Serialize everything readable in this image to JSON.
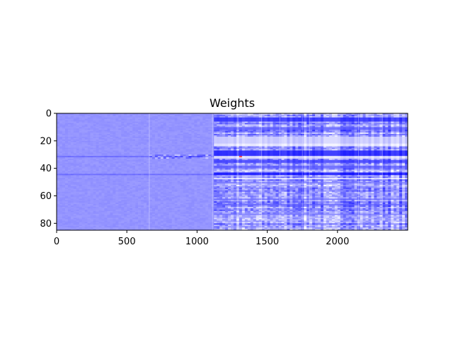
{
  "chart_data": {
    "type": "heatmap",
    "title": "Weights",
    "xlabel": "",
    "ylabel": "",
    "x_range": [
      0,
      2500
    ],
    "y_range": [
      0,
      85
    ],
    "y_inverted": true,
    "x_ticks": [
      0,
      500,
      1000,
      1500,
      2000
    ],
    "y_ticks": [
      0,
      20,
      40,
      60,
      80
    ],
    "colormap": "bwr",
    "color_low": "#0000ff",
    "color_mid": "#ffffff",
    "color_high": "#ff0000",
    "base_value": -0.42,
    "regions": [
      {
        "x_from": 0,
        "x_to": 1110,
        "description": "low variation, uniform blue"
      },
      {
        "x_from": 1110,
        "x_to": 2500,
        "description": "high variation, strong row bands"
      }
    ],
    "column_boundaries": [
      660,
      1110,
      1290,
      1460,
      1590,
      1750,
      1800,
      2150,
      2320
    ],
    "row_bands": [
      {
        "row_from": 3,
        "row_to": 6,
        "value": -0.75
      },
      {
        "row_from": 10,
        "row_to": 12,
        "value": -0.6
      },
      {
        "row_from": 17,
        "row_to": 22,
        "value": -0.2
      },
      {
        "row_from": 22,
        "row_to": 24,
        "value": -0.1
      },
      {
        "row_from": 27,
        "row_to": 31,
        "value": -0.8
      },
      {
        "row_from": 31,
        "row_to": 33,
        "value": -0.15
      },
      {
        "row_from": 34,
        "row_to": 36,
        "value": -0.7
      },
      {
        "row_from": 38,
        "row_to": 40,
        "value": -0.6
      },
      {
        "row_from": 43,
        "row_to": 45,
        "value": -0.85
      },
      {
        "row_from": 47,
        "row_to": 48,
        "value": -0.1
      },
      {
        "row_from": 50,
        "row_to": 51,
        "value": -0.5
      },
      {
        "row_from": 62,
        "row_to": 63,
        "value": -0.55
      },
      {
        "row_from": 66,
        "row_to": 67,
        "value": -0.6
      },
      {
        "row_from": 73,
        "row_to": 74,
        "value": -0.5
      }
    ],
    "hotspots": [
      {
        "x": 1300,
        "y": 31,
        "value": 0.7
      }
    ]
  }
}
